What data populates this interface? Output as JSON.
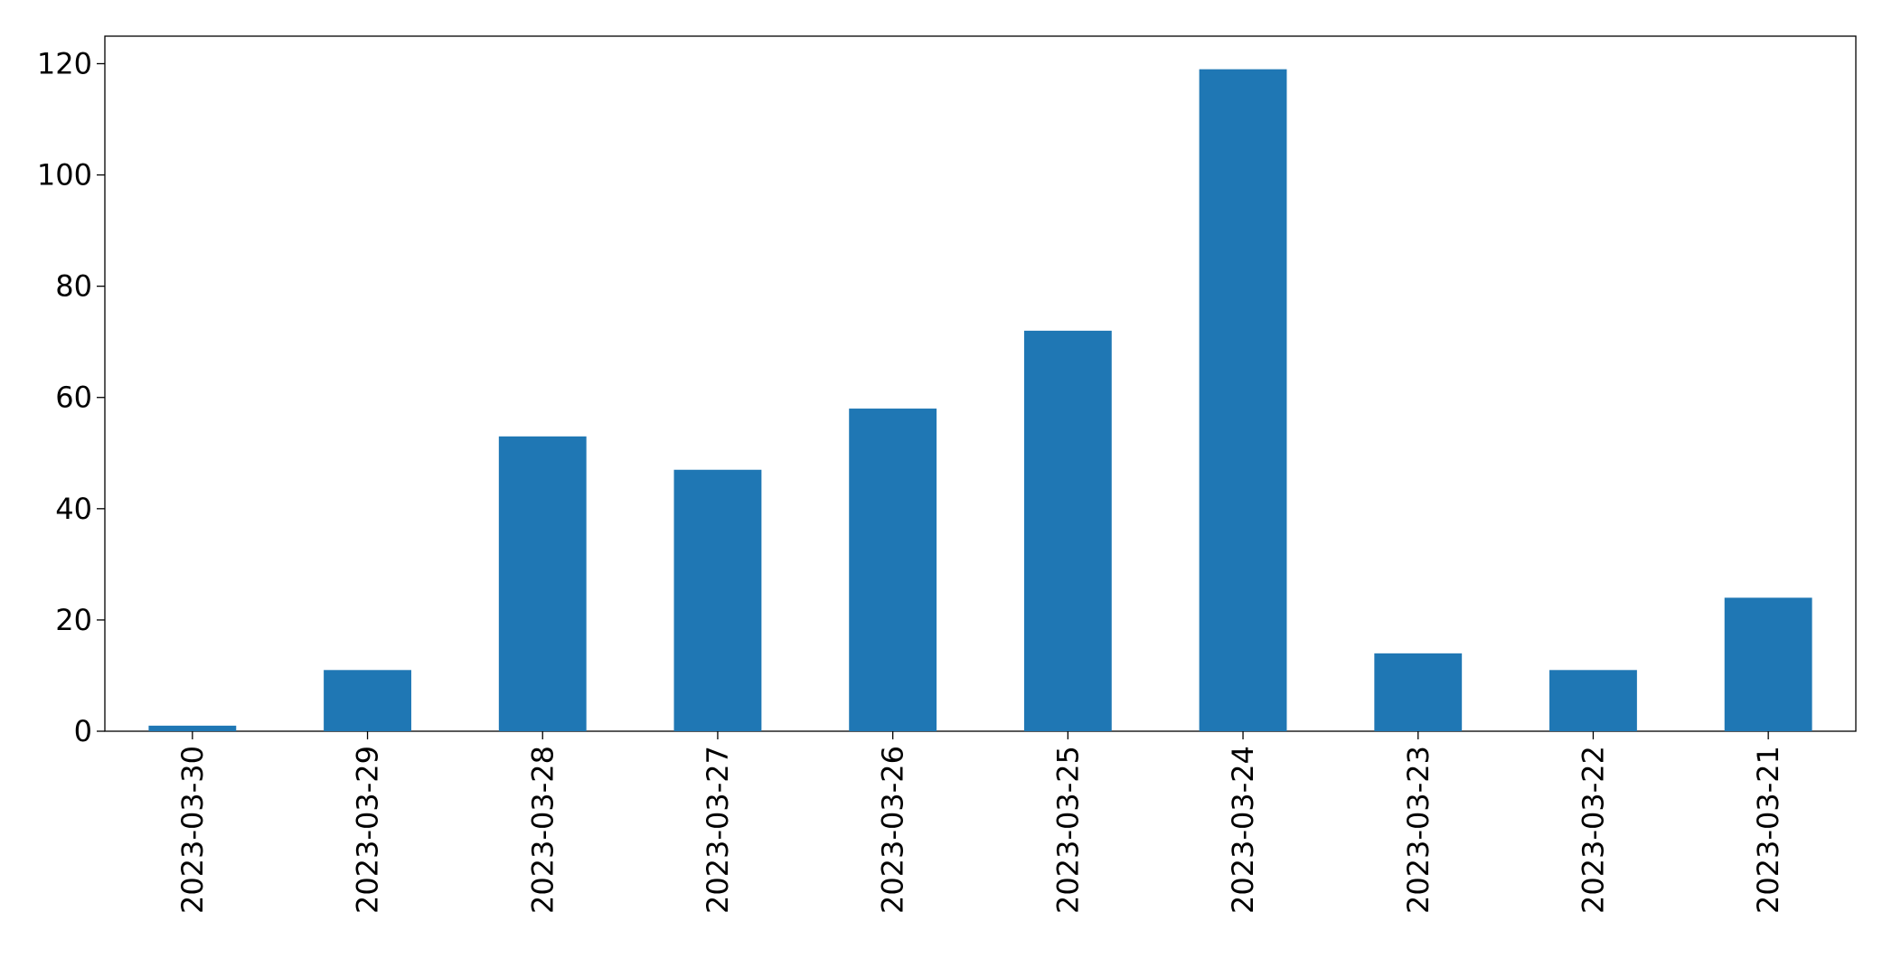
{
  "chart_data": {
    "type": "bar",
    "categories": [
      "2023-03-30",
      "2023-03-29",
      "2023-03-28",
      "2023-03-27",
      "2023-03-26",
      "2023-03-25",
      "2023-03-24",
      "2023-03-23",
      "2023-03-22",
      "2023-03-21"
    ],
    "values": [
      1,
      11,
      53,
      47,
      58,
      72,
      119,
      14,
      11,
      24
    ],
    "color": "#1f77b4",
    "ylim": [
      0,
      124.95
    ],
    "yticks": [
      0,
      20,
      40,
      60,
      80,
      100,
      120
    ],
    "grid": false
  }
}
